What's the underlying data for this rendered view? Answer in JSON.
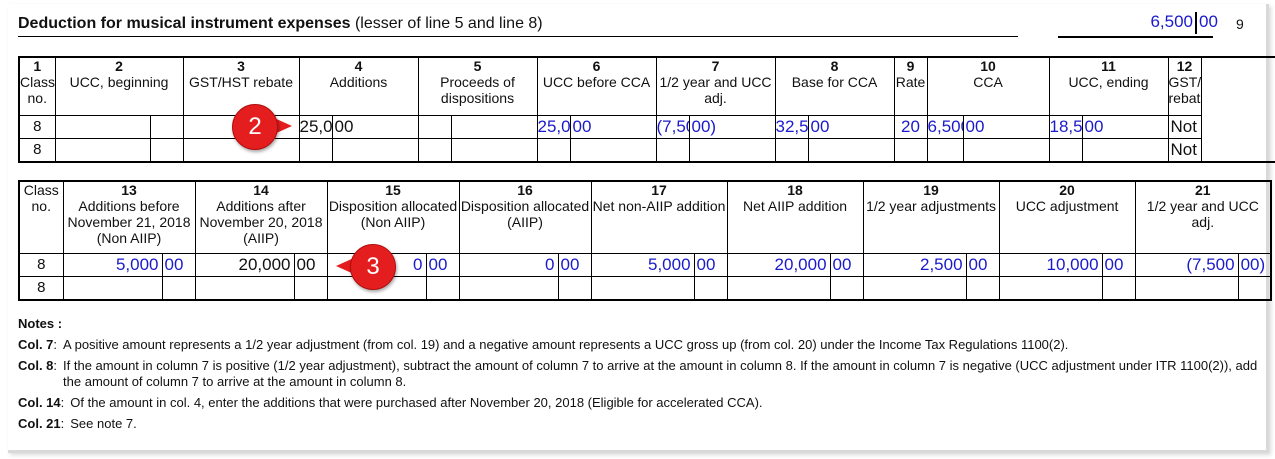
{
  "form": {
    "title_bold": "Deduction for musical instrument expenses",
    "title_rest": " (lesser of line 5 and line 8)",
    "total_value": "6,500",
    "total_cents": "00",
    "line_number": "9"
  },
  "table1": {
    "headers": [
      {
        "num": "1",
        "label": "Class no."
      },
      {
        "num": "2",
        "label": "UCC, beginning"
      },
      {
        "num": "3",
        "label": "GST/HST rebate"
      },
      {
        "num": "4",
        "label": "Additions"
      },
      {
        "num": "5",
        "label": "Proceeds of dispositions"
      },
      {
        "num": "6",
        "label": "UCC before CCA"
      },
      {
        "num": "7",
        "label": "1/2 year and UCC adj."
      },
      {
        "num": "8",
        "label": "Base for CCA"
      },
      {
        "num": "9",
        "label": "Rate"
      },
      {
        "num": "10",
        "label": "CCA"
      },
      {
        "num": "11",
        "label": "UCC, ending"
      },
      {
        "num": "12",
        "label": "GST/HST rebate?"
      }
    ],
    "row1": {
      "class": "8",
      "additions": "25,000",
      "additions_c": "00",
      "ucc_before": "25,000",
      "ucc_before_c": "00",
      "half_year": "(7,500",
      "half_year_c": "00)",
      "base": "32,500",
      "base_c": "00",
      "rate": "20",
      "cca": "6,500",
      "cca_c": "00",
      "ucc_end": "18,500",
      "ucc_end_c": "00",
      "rebate": "Not eligible"
    },
    "row2": {
      "class": "8",
      "rebate": "Not eligible"
    }
  },
  "table2": {
    "headers": [
      {
        "num": "",
        "label": "Class no."
      },
      {
        "num": "13",
        "label": "Additions before November 21, 2018 (Non AIIP)"
      },
      {
        "num": "14",
        "label": "Additions after November 20, 2018 (AIIP)"
      },
      {
        "num": "15",
        "label": "Disposition allocated (Non AIIP)"
      },
      {
        "num": "16",
        "label": "Disposition allocated (AIIP)"
      },
      {
        "num": "17",
        "label": "Net non-AIIP addition"
      },
      {
        "num": "18",
        "label": "Net AIIP addition"
      },
      {
        "num": "19",
        "label": "1/2 year adjustments"
      },
      {
        "num": "20",
        "label": "UCC adjustment"
      },
      {
        "num": "21",
        "label": "1/2 year and UCC adj."
      }
    ],
    "row1": {
      "class": "8",
      "before": "5,000",
      "before_c": "00",
      "after": "20,000",
      "after_c": "00",
      "disp_non": "0",
      "disp_non_c": "00",
      "disp_aiip": "0",
      "disp_aiip_c": "00",
      "net_non": "5,000",
      "net_non_c": "00",
      "net_aiip": "20,000",
      "net_aiip_c": "00",
      "half_adj": "2,500",
      "half_adj_c": "00",
      "ucc_adj": "10,000",
      "ucc_adj_c": "00",
      "half_ucc": "(7,500",
      "half_ucc_c": "00)"
    },
    "row2": {
      "class": "8"
    }
  },
  "callouts": {
    "first": "2",
    "second": "3"
  },
  "notes": {
    "heading": "Notes :",
    "items": [
      {
        "label": "Col. 7",
        "text": "A positive amount represents a 1/2 year adjustment (from col. 19) and a negative amount represents a UCC gross up (from col. 20) under the Income Tax Regulations 1100(2)."
      },
      {
        "label": "Col. 8",
        "text": "If the amount in column 7 is positive (1/2 year adjustment), subtract the amount of column 7 to arrive at the amount in column 8. If the amount in column 7 is negative (UCC adjustment under ITR 1100(2)), add the amount of column 7 to arrive at the amount in column 8."
      },
      {
        "label": "Col. 14",
        "text": "Of the amount in col. 4, enter the additions that were purchased after November 20, 2018 (Eligible for accelerated CCA)."
      },
      {
        "label": "Col. 21",
        "text": "See note 7."
      }
    ]
  },
  "colors": {
    "value_blue": "#1a1acd",
    "callout_red": "#e41e1e"
  }
}
